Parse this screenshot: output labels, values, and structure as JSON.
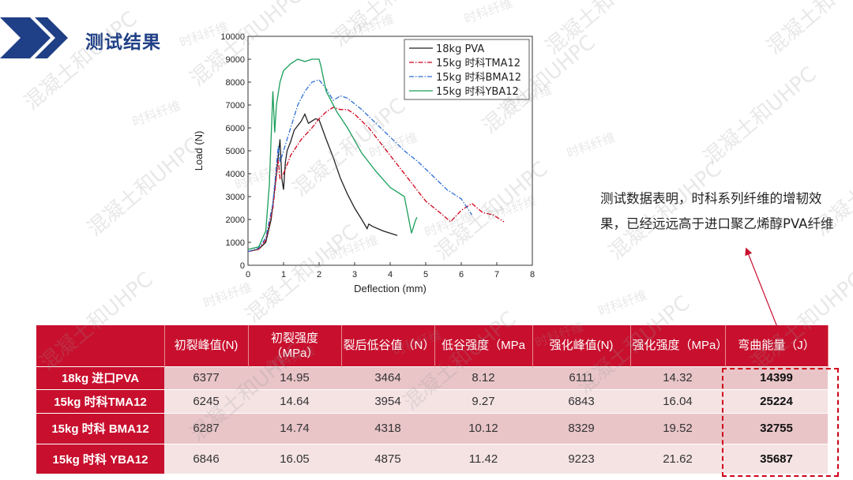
{
  "slide": {
    "title": "测试结果",
    "summary": "测试数据表明，时科系列纤维的增韧效果，已经远远高于进口聚乙烯醇PVA纤维",
    "watermark_texts": [
      "混凝土和UHPC",
      "时科纤维"
    ],
    "colors": {
      "title": "#1f3f86",
      "accent": "#c8102e",
      "chevron": "#1f3f86"
    }
  },
  "chart_data": {
    "type": "line",
    "xlabel": "Deflection (mm)",
    "ylabel": "Load (N)",
    "xlim": [
      0,
      8
    ],
    "ylim": [
      0,
      10000
    ],
    "xticks": [
      0,
      1,
      2,
      3,
      4,
      5,
      6,
      7,
      8
    ],
    "yticks": [
      0,
      1000,
      2000,
      3000,
      4000,
      5000,
      6000,
      7000,
      8000,
      9000,
      10000
    ],
    "grid": false,
    "legend_position": "top-right",
    "series": [
      {
        "name": "18kg PVA",
        "color": "#222222",
        "dash": "solid",
        "x": [
          0,
          0.3,
          0.5,
          0.65,
          0.8,
          0.9,
          0.95,
          1.0,
          1.05,
          1.1,
          1.2,
          1.3,
          1.5,
          1.6,
          1.7,
          1.8,
          1.9,
          2.0,
          2.2,
          2.4,
          2.6,
          2.8,
          3.0,
          3.2,
          3.35,
          3.4,
          3.5,
          3.8,
          4.2
        ],
        "y": [
          600,
          700,
          1000,
          2000,
          4000,
          5500,
          3800,
          3300,
          4500,
          5000,
          5400,
          5900,
          6300,
          6600,
          6200,
          6300,
          6400,
          6350,
          5500,
          4700,
          3800,
          3100,
          2500,
          2000,
          1600,
          1800,
          1700,
          1500,
          1300
        ]
      },
      {
        "name": "15kg 时科TMA12",
        "color": "#d0021b",
        "dash": "dashdot",
        "x": [
          0,
          0.3,
          0.5,
          0.7,
          0.85,
          0.9,
          1.0,
          1.2,
          1.5,
          1.8,
          2.0,
          2.2,
          2.4,
          2.6,
          2.8,
          3.0,
          3.4,
          3.8,
          4.2,
          4.6,
          5.0,
          5.4,
          5.7,
          6.0,
          6.3,
          6.6,
          6.9,
          7.2
        ],
        "y": [
          600,
          700,
          1100,
          2500,
          4600,
          3800,
          4000,
          4800,
          5500,
          6000,
          6400,
          6700,
          6900,
          6800,
          6800,
          6600,
          6000,
          5200,
          4400,
          3600,
          2800,
          2300,
          1900,
          2400,
          2700,
          2300,
          2200,
          1900
        ]
      },
      {
        "name": "15kg 时科BMA12",
        "color": "#2f6fd1",
        "dash": "dashdot",
        "x": [
          0,
          0.3,
          0.5,
          0.7,
          0.85,
          0.9,
          1.0,
          1.2,
          1.4,
          1.6,
          1.8,
          2.0,
          2.2,
          2.4,
          2.6,
          2.8,
          3.2,
          3.6,
          4.0,
          4.4,
          4.8,
          5.2,
          5.6,
          6.0,
          6.3
        ],
        "y": [
          600,
          750,
          1200,
          2700,
          5200,
          4500,
          5000,
          6000,
          7000,
          7600,
          8000,
          8100,
          7700,
          7200,
          7400,
          7300,
          6800,
          6200,
          5600,
          5000,
          4500,
          3900,
          3300,
          2900,
          2200
        ]
      },
      {
        "name": "15kg 时科YBA12",
        "color": "#1a9e5a",
        "dash": "solid",
        "x": [
          0,
          0.3,
          0.5,
          0.6,
          0.7,
          0.75,
          0.8,
          0.9,
          1.0,
          1.2,
          1.4,
          1.6,
          1.8,
          2.0,
          2.05,
          2.2,
          2.5,
          2.8,
          3.2,
          3.6,
          4.0,
          4.4,
          4.6,
          4.7,
          4.75
        ],
        "y": [
          700,
          800,
          1500,
          3500,
          7600,
          5800,
          7000,
          8000,
          8500,
          8800,
          9000,
          8900,
          9000,
          9000,
          8700,
          7600,
          6700,
          6000,
          4900,
          4100,
          3400,
          3000,
          1400,
          1900,
          2100
        ]
      }
    ]
  },
  "table": {
    "headers": [
      "",
      "初裂峰值(N)",
      "初裂强度（MPa）",
      "裂后低谷值（N）",
      "低谷强度（MPa",
      "强化峰值(N)",
      "强化强度（MPa）",
      "弯曲能量（J）"
    ],
    "rows": [
      [
        "18kg 进口PVA",
        "6377",
        "14.95",
        "3464",
        "8.12",
        "6111",
        "14.32",
        "14399"
      ],
      [
        "15kg 时科TMA12",
        "6245",
        "14.64",
        "3954",
        "9.27",
        "6843",
        "16.04",
        "25224"
      ],
      [
        "15kg 时科 BMA12",
        "6287",
        "14.74",
        "4318",
        "10.12",
        "8329",
        "19.52",
        "32755"
      ],
      [
        "15kg 时科 YBA12",
        "6846",
        "16.05",
        "4875",
        "11.42",
        "9223",
        "21.62",
        "35687"
      ]
    ]
  }
}
